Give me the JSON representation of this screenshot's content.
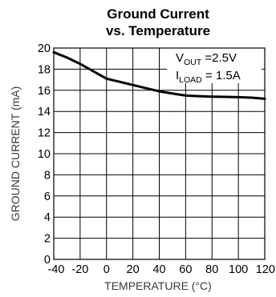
{
  "chart_data": {
    "type": "line",
    "title_lines": [
      "Ground Current",
      "vs. Temperature"
    ],
    "xlabel": "TEMPERATURE (°C)",
    "ylabel": "GROUND CURRENT (mA)",
    "xlim": [
      -40,
      120
    ],
    "ylim": [
      0,
      20
    ],
    "x_ticks": [
      -40,
      -20,
      0,
      20,
      40,
      60,
      80,
      100,
      120
    ],
    "y_ticks": [
      0,
      2,
      4,
      6,
      8,
      10,
      12,
      14,
      16,
      18,
      20
    ],
    "grid": true,
    "annotations": [
      {
        "main": "V",
        "sub": "OUT",
        "rest": " =2.5V"
      },
      {
        "main": "I",
        "sub": "LOAD",
        "rest": " = 1.5A"
      }
    ],
    "series": [
      {
        "x": [
          -40,
          -30,
          -20,
          -10,
          0,
          10,
          20,
          30,
          40,
          50,
          60,
          70,
          80,
          90,
          100,
          110,
          120
        ],
        "y": [
          19.6,
          19.1,
          18.5,
          17.8,
          17.1,
          16.8,
          16.5,
          16.2,
          15.9,
          15.7,
          15.5,
          15.45,
          15.4,
          15.38,
          15.35,
          15.3,
          15.2
        ]
      }
    ]
  }
}
